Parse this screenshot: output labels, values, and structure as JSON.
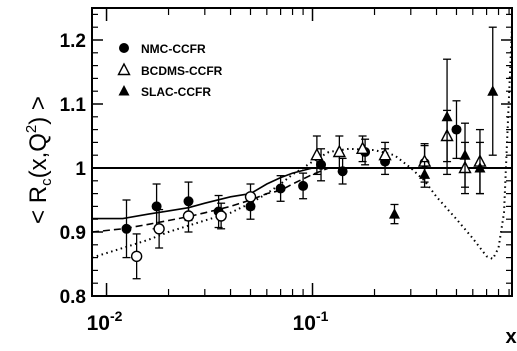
{
  "chart_data": {
    "type": "scatter",
    "title": "",
    "xlabel": "x",
    "ylabel": "< R_c(x,Q^2) >",
    "ylabel_parts": {
      "open": "< R",
      "sub": "c",
      "mid": "(x,Q",
      "sup": "2",
      "close": ") >"
    },
    "xscale": "log",
    "xlim": [
      0.0085,
      0.93
    ],
    "ylim": [
      0.8,
      1.25
    ],
    "x_ticks": [
      {
        "value": 0.01,
        "base": "10",
        "exp": "-2"
      },
      {
        "value": 0.1,
        "base": "10",
        "exp": "-1"
      }
    ],
    "y_ticks": [
      {
        "value": 0.8,
        "label": "0.8"
      },
      {
        "value": 0.9,
        "label": "0.9"
      },
      {
        "value": 1.0,
        "label": "1"
      },
      {
        "value": 1.1,
        "label": "1.1"
      },
      {
        "value": 1.2,
        "label": "1.2"
      }
    ],
    "legend": {
      "placement": "top-left",
      "entries": [
        "NMC-CCFR",
        "BCDMS-CCFR",
        "SLAC-CCFR"
      ]
    },
    "series": [
      {
        "name": "NMC-CCFR",
        "marker": "filled-circle",
        "points": [
          {
            "x": 0.0125,
            "y": 0.905,
            "err": 0.045
          },
          {
            "x": 0.0175,
            "y": 0.94,
            "err": 0.035
          },
          {
            "x": 0.025,
            "y": 0.948,
            "err": 0.03
          },
          {
            "x": 0.035,
            "y": 0.932,
            "err": 0.025
          },
          {
            "x": 0.05,
            "y": 0.94,
            "err": 0.02
          },
          {
            "x": 0.07,
            "y": 0.968,
            "err": 0.02
          },
          {
            "x": 0.09,
            "y": 0.972,
            "err": 0.02
          },
          {
            "x": 0.11,
            "y": 1.005,
            "err": 0.025
          },
          {
            "x": 0.14,
            "y": 0.995,
            "err": 0.02
          },
          {
            "x": 0.18,
            "y": 1.025,
            "err": 0.02
          },
          {
            "x": 0.225,
            "y": 1.01,
            "err": 0.02
          },
          {
            "x": 0.35,
            "y": 1.008,
            "err": 0.03
          },
          {
            "x": 0.5,
            "y": 1.06,
            "err": 0.045
          }
        ]
      },
      {
        "name": "BCDMS-CCFR",
        "marker": "open-triangle",
        "points": [
          {
            "x": 0.105,
            "y": 1.02,
            "err": 0.03
          },
          {
            "x": 0.135,
            "y": 1.025,
            "err": 0.025
          },
          {
            "x": 0.175,
            "y": 1.03,
            "err": 0.02
          },
          {
            "x": 0.225,
            "y": 1.02,
            "err": 0.02
          },
          {
            "x": 0.35,
            "y": 1.01,
            "err": 0.025
          },
          {
            "x": 0.45,
            "y": 1.05,
            "err": 0.04
          },
          {
            "x": 0.55,
            "y": 1.0,
            "err": 0.04
          },
          {
            "x": 0.65,
            "y": 1.01,
            "err": 0.05
          }
        ]
      },
      {
        "name": "SLAC-CCFR",
        "marker": "filled-triangle",
        "points": [
          {
            "x": 0.25,
            "y": 0.928,
            "err": 0.015
          },
          {
            "x": 0.35,
            "y": 0.99,
            "err": 0.02
          },
          {
            "x": 0.45,
            "y": 1.08,
            "err": 0.09
          },
          {
            "x": 0.55,
            "y": 1.02,
            "err": 0.05
          },
          {
            "x": 0.65,
            "y": 1.0,
            "err": 0.04
          },
          {
            "x": 0.75,
            "y": 1.12,
            "err": 0.1
          }
        ]
      },
      {
        "name": "",
        "marker": "open-circle",
        "points": [
          {
            "x": 0.014,
            "y": 0.862,
            "err": 0.035
          },
          {
            "x": 0.018,
            "y": 0.905,
            "err": 0.03
          },
          {
            "x": 0.025,
            "y": 0.925,
            "err": 0.025
          },
          {
            "x": 0.036,
            "y": 0.925,
            "err": 0.02
          },
          {
            "x": 0.05,
            "y": 0.955,
            "err": 0.02
          }
        ]
      }
    ],
    "lines": [
      {
        "style": "solid",
        "points": [
          [
            0.0085,
            1.0
          ],
          [
            0.93,
            1.0
          ]
        ]
      },
      {
        "style": "solid",
        "points": [
          [
            0.0085,
            0.921
          ],
          [
            0.012,
            0.921
          ],
          [
            0.016,
            0.928
          ],
          [
            0.02,
            0.933
          ],
          [
            0.025,
            0.938
          ],
          [
            0.03,
            0.945
          ],
          [
            0.04,
            0.955
          ],
          [
            0.05,
            0.96
          ],
          [
            0.06,
            0.975
          ],
          [
            0.07,
            0.985
          ],
          [
            0.08,
            0.992
          ],
          [
            0.1,
            1.0
          ],
          [
            0.15,
            1.0
          ],
          [
            0.3,
            1.0
          ],
          [
            0.5,
            1.0
          ],
          [
            0.93,
            1.0
          ]
        ]
      },
      {
        "style": "dashed",
        "points": [
          [
            0.0085,
            0.9
          ],
          [
            0.012,
            0.905
          ],
          [
            0.016,
            0.912
          ],
          [
            0.02,
            0.918
          ],
          [
            0.025,
            0.924
          ],
          [
            0.03,
            0.93
          ],
          [
            0.04,
            0.94
          ],
          [
            0.05,
            0.95
          ],
          [
            0.06,
            0.96
          ],
          [
            0.07,
            0.965
          ],
          [
            0.08,
            0.975
          ],
          [
            0.1,
            0.99
          ],
          [
            0.12,
            1.0
          ],
          [
            0.2,
            1.0
          ],
          [
            0.93,
            1.0
          ]
        ]
      },
      {
        "style": "dotted",
        "points": [
          [
            0.0085,
            0.86
          ],
          [
            0.012,
            0.875
          ],
          [
            0.016,
            0.888
          ],
          [
            0.02,
            0.9
          ],
          [
            0.025,
            0.91
          ],
          [
            0.03,
            0.918
          ],
          [
            0.04,
            0.93
          ],
          [
            0.05,
            0.945
          ],
          [
            0.06,
            0.96
          ],
          [
            0.07,
            0.975
          ],
          [
            0.08,
            0.99
          ],
          [
            0.09,
            1.0
          ],
          [
            0.1,
            1.01
          ],
          [
            0.12,
            1.025
          ],
          [
            0.15,
            1.03
          ],
          [
            0.2,
            1.028
          ],
          [
            0.25,
            1.02
          ],
          [
            0.3,
            1.0
          ],
          [
            0.35,
            0.98
          ],
          [
            0.4,
            0.955
          ],
          [
            0.5,
            0.92
          ],
          [
            0.6,
            0.89
          ],
          [
            0.7,
            0.862
          ],
          [
            0.75,
            0.858
          ],
          [
            0.8,
            0.875
          ],
          [
            0.85,
            0.93
          ],
          [
            0.93,
            1.22
          ]
        ]
      }
    ]
  }
}
